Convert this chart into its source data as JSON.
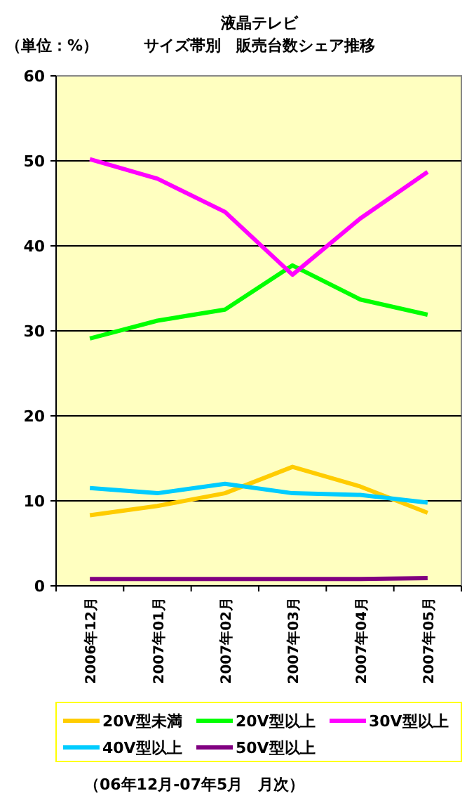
{
  "chart_data": {
    "type": "line",
    "title": "液晶テレビ",
    "subtitle": "サイズ帯別　販売台数シェア推移",
    "ylabel": "（単位：%）",
    "categories": [
      "2006年12月",
      "2007年01月",
      "2007年02月",
      "2007年03月",
      "2007年04月",
      "2007年05月"
    ],
    "series": [
      {
        "name": "20V型未満",
        "color": "#ffcc00",
        "values": [
          8.3,
          9.4,
          10.9,
          14.0,
          11.7,
          8.6
        ]
      },
      {
        "name": "20V型以上",
        "color": "#00ff00",
        "values": [
          29.1,
          31.2,
          32.5,
          37.7,
          33.7,
          31.9
        ]
      },
      {
        "name": "30V型以上",
        "color": "#ff00ff",
        "values": [
          50.2,
          47.9,
          44.0,
          36.6,
          43.2,
          48.7
        ]
      },
      {
        "name": "40V型以上",
        "color": "#00ccff",
        "values": [
          11.5,
          10.9,
          12.0,
          10.9,
          10.7,
          9.8
        ]
      },
      {
        "name": "50V型以上",
        "color": "#800080",
        "values": [
          0.8,
          0.8,
          0.8,
          0.8,
          0.8,
          0.9
        ]
      }
    ],
    "ylim": [
      0,
      60
    ],
    "yticks": [
      0,
      10,
      20,
      30,
      40,
      50,
      60
    ],
    "grid": "y",
    "legend": "bottom",
    "marker": "none",
    "line_style": "solid",
    "annotations": [
      "（06年12月-07年5月　月次）"
    ]
  }
}
